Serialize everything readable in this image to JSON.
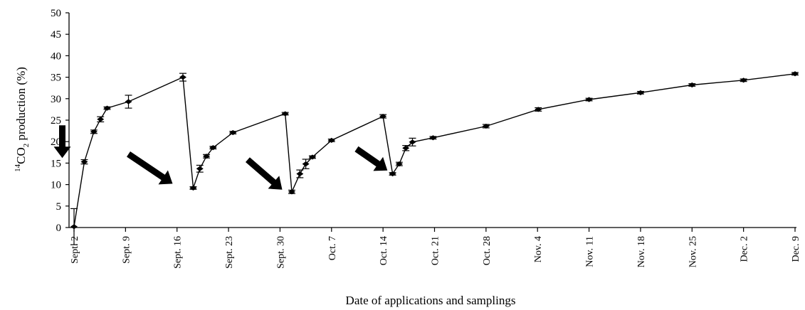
{
  "chart_data": {
    "type": "line",
    "title": "",
    "xlabel": "Date of applications and samplings",
    "ylabel_prefix": "14",
    "ylabel_main": "CO",
    "ylabel_sub": "2",
    "ylabel_suffix": " production (%)",
    "ylim": [
      0,
      50
    ],
    "yticks": [
      0,
      5,
      10,
      15,
      20,
      25,
      30,
      35,
      40,
      45,
      50
    ],
    "xlim": [
      0,
      98
    ],
    "xticks": [
      {
        "day": 0,
        "label": "Sept. 2"
      },
      {
        "day": 7,
        "label": "Sept. 9"
      },
      {
        "day": 14,
        "label": "Sept. 16"
      },
      {
        "day": 21,
        "label": "Sept. 23"
      },
      {
        "day": 28,
        "label": "Sept. 30"
      },
      {
        "day": 35,
        "label": "Oct. 7"
      },
      {
        "day": 42,
        "label": "Oct. 14"
      },
      {
        "day": 49,
        "label": "Oct. 21"
      },
      {
        "day": 56,
        "label": "Oct. 28"
      },
      {
        "day": 63,
        "label": "Nov. 4"
      },
      {
        "day": 70,
        "label": "Nov. 11"
      },
      {
        "day": 77,
        "label": "Nov. 18"
      },
      {
        "day": 84,
        "label": "Nov. 25"
      },
      {
        "day": 91,
        "label": "Dec. 2"
      },
      {
        "day": 98,
        "label": "Dec. 9"
      }
    ],
    "grid": false,
    "series": [
      {
        "color": "#000000",
        "points": [
          {
            "day": 0.0,
            "y": 0.2,
            "err": 4.2
          },
          {
            "day": 1.4,
            "y": 15.3,
            "err": 0.5
          },
          {
            "day": 2.7,
            "y": 22.3,
            "err": 0.4
          },
          {
            "day": 3.6,
            "y": 25.2,
            "err": 0.6
          },
          {
            "day": 4.5,
            "y": 27.8,
            "err": 0.3
          },
          {
            "day": 7.4,
            "y": 29.3,
            "err": 1.5
          },
          {
            "day": 14.8,
            "y": 35.0,
            "err": 0.9
          },
          {
            "day": 16.2,
            "y": 9.2,
            "err": 0.3
          },
          {
            "day": 17.1,
            "y": 13.7,
            "err": 0.8
          },
          {
            "day": 18.0,
            "y": 16.6,
            "err": 0.4
          },
          {
            "day": 18.9,
            "y": 18.6,
            "err": 0.3
          },
          {
            "day": 21.6,
            "y": 22.1,
            "err": 0.3
          },
          {
            "day": 28.7,
            "y": 26.5,
            "err": 0.3
          },
          {
            "day": 29.6,
            "y": 8.3,
            "err": 0.4
          },
          {
            "day": 30.7,
            "y": 12.5,
            "err": 0.9
          },
          {
            "day": 31.5,
            "y": 14.8,
            "err": 1.1
          },
          {
            "day": 32.4,
            "y": 16.4,
            "err": 0.3
          },
          {
            "day": 35.0,
            "y": 20.3,
            "err": 0.3
          },
          {
            "day": 42.0,
            "y": 25.9,
            "err": 0.4
          },
          {
            "day": 43.3,
            "y": 12.5,
            "err": 0.3
          },
          {
            "day": 44.2,
            "y": 14.8,
            "err": 0.4
          },
          {
            "day": 45.1,
            "y": 18.5,
            "err": 0.6
          },
          {
            "day": 46.0,
            "y": 19.9,
            "err": 0.9
          },
          {
            "day": 48.8,
            "y": 20.9,
            "err": 0.3
          },
          {
            "day": 56.0,
            "y": 23.6,
            "err": 0.4
          },
          {
            "day": 63.1,
            "y": 27.5,
            "err": 0.4
          },
          {
            "day": 70.0,
            "y": 29.8,
            "err": 0.3
          },
          {
            "day": 77.0,
            "y": 31.4,
            "err": 0.3
          },
          {
            "day": 84.0,
            "y": 33.2,
            "err": 0.3
          },
          {
            "day": 91.0,
            "y": 34.3,
            "err": 0.3
          },
          {
            "day": 98.0,
            "y": 35.8,
            "err": 0.3
          }
        ]
      }
    ],
    "application_arrows": [
      {
        "from": {
          "day": -1.6,
          "y": 23.8
        },
        "to": {
          "day": -1.6,
          "y": 16.2
        },
        "label": "application"
      },
      {
        "from": {
          "day": 7.4,
          "y": 17.1
        },
        "to": {
          "day": 13.4,
          "y": 10.2
        },
        "label": "application"
      },
      {
        "from": {
          "day": 23.6,
          "y": 15.8
        },
        "to": {
          "day": 28.3,
          "y": 8.8
        },
        "label": "application"
      },
      {
        "from": {
          "day": 38.4,
          "y": 18.3
        },
        "to": {
          "day": 42.6,
          "y": 13.3
        },
        "label": "application"
      }
    ]
  }
}
